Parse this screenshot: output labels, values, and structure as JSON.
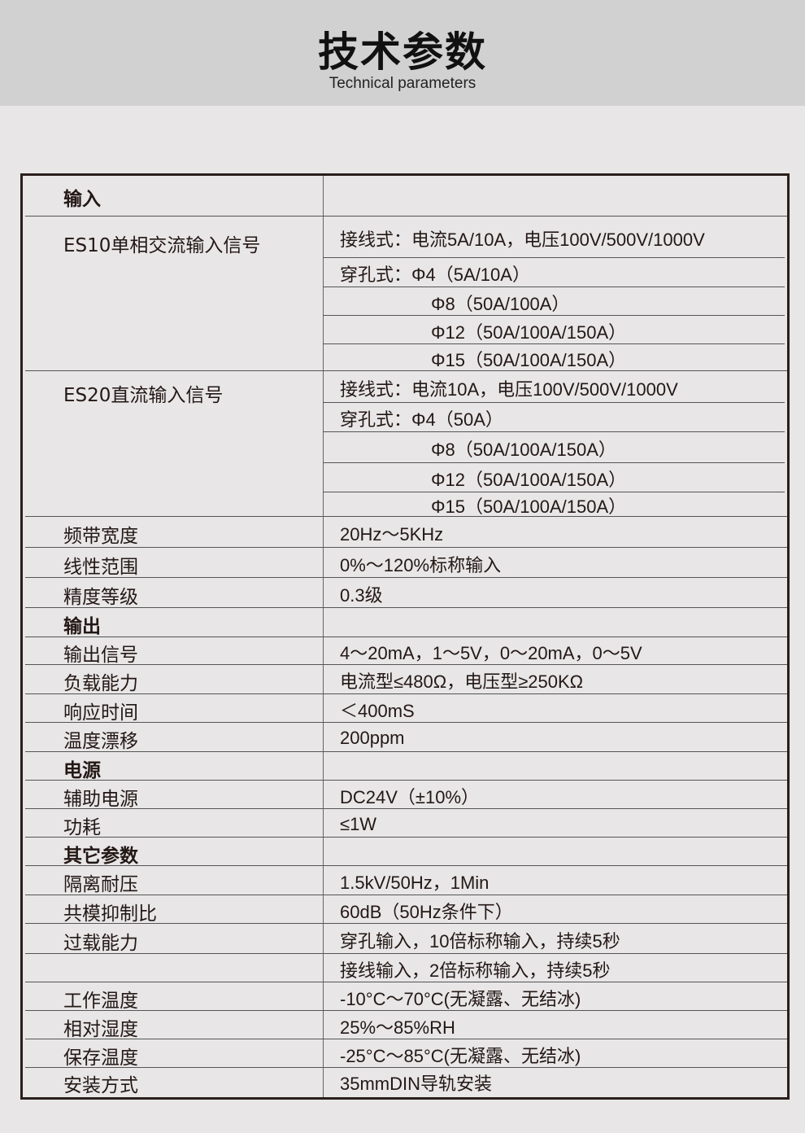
{
  "header": {
    "title": "技术参数",
    "subtitle": "Technical parameters"
  },
  "rows": [
    {
      "label": "输入",
      "bold": true,
      "values": [
        ""
      ]
    },
    {
      "label": "ES10单相交流输入信号",
      "bold": false,
      "values": [
        "接线式：电流5A/10A，电压100V/500V/1000V",
        "穿孔式：Φ4（5A/10A）",
        "Φ8（50A/100A）",
        "Φ12（50A/100A/150A）",
        "Φ15（50A/100A/150A）"
      ]
    },
    {
      "label": "ES20直流输入信号",
      "bold": false,
      "values": [
        "接线式：电流10A，电压100V/500V/1000V",
        "穿孔式：Φ4（50A）",
        "Φ8（50A/100A/150A）",
        "Φ12（50A/100A/150A）",
        "Φ15（50A/100A/150A）"
      ]
    },
    {
      "label": "频带宽度",
      "bold": false,
      "values": [
        "20Hz～5KHz"
      ]
    },
    {
      "label": "线性范围",
      "bold": false,
      "values": [
        "0%～120%标称输入"
      ]
    },
    {
      "label": "精度等级",
      "bold": false,
      "values": [
        "0.3级"
      ]
    },
    {
      "label": "输出",
      "bold": true,
      "values": [
        ""
      ]
    },
    {
      "label": "输出信号",
      "bold": false,
      "values": [
        "4～20mA，1～5V，0～20mA，0～5V"
      ]
    },
    {
      "label": "负载能力",
      "bold": false,
      "values": [
        "电流型≤480Ω，电压型≥250KΩ"
      ]
    },
    {
      "label": "响应时间",
      "bold": false,
      "values": [
        "＜400mS"
      ]
    },
    {
      "label": "温度漂移",
      "bold": false,
      "values": [
        "200ppm"
      ]
    },
    {
      "label": "电源",
      "bold": true,
      "values": [
        ""
      ]
    },
    {
      "label": "辅助电源",
      "bold": false,
      "values": [
        "DC24V（±10%）"
      ]
    },
    {
      "label": "功耗",
      "bold": false,
      "values": [
        "≤1W"
      ]
    },
    {
      "label": "其它参数",
      "bold": true,
      "values": [
        ""
      ]
    },
    {
      "label": "隔离耐压",
      "bold": false,
      "values": [
        "1.5kV/50Hz，1Min"
      ]
    },
    {
      "label": "共模抑制比",
      "bold": false,
      "values": [
        "60dB（50Hz条件下）"
      ]
    },
    {
      "label": "过载能力",
      "bold": false,
      "values": [
        "穿孔输入，10倍标称输入，持续5秒"
      ]
    },
    {
      "label": "",
      "bold": false,
      "values": [
        "接线输入，2倍标称输入，持续5秒"
      ]
    },
    {
      "label": "工作温度",
      "bold": false,
      "values": [
        "-10°C～70°C(无凝露、无结冰)"
      ]
    },
    {
      "label": "相对湿度",
      "bold": false,
      "values": [
        "25%～85%RH"
      ]
    },
    {
      "label": "保存温度",
      "bold": false,
      "values": [
        "-25°C～85°C(无凝露、无结冰)"
      ]
    },
    {
      "label": "安装方式",
      "bold": false,
      "values": [
        "35mmDIN导轨安装"
      ]
    }
  ]
}
